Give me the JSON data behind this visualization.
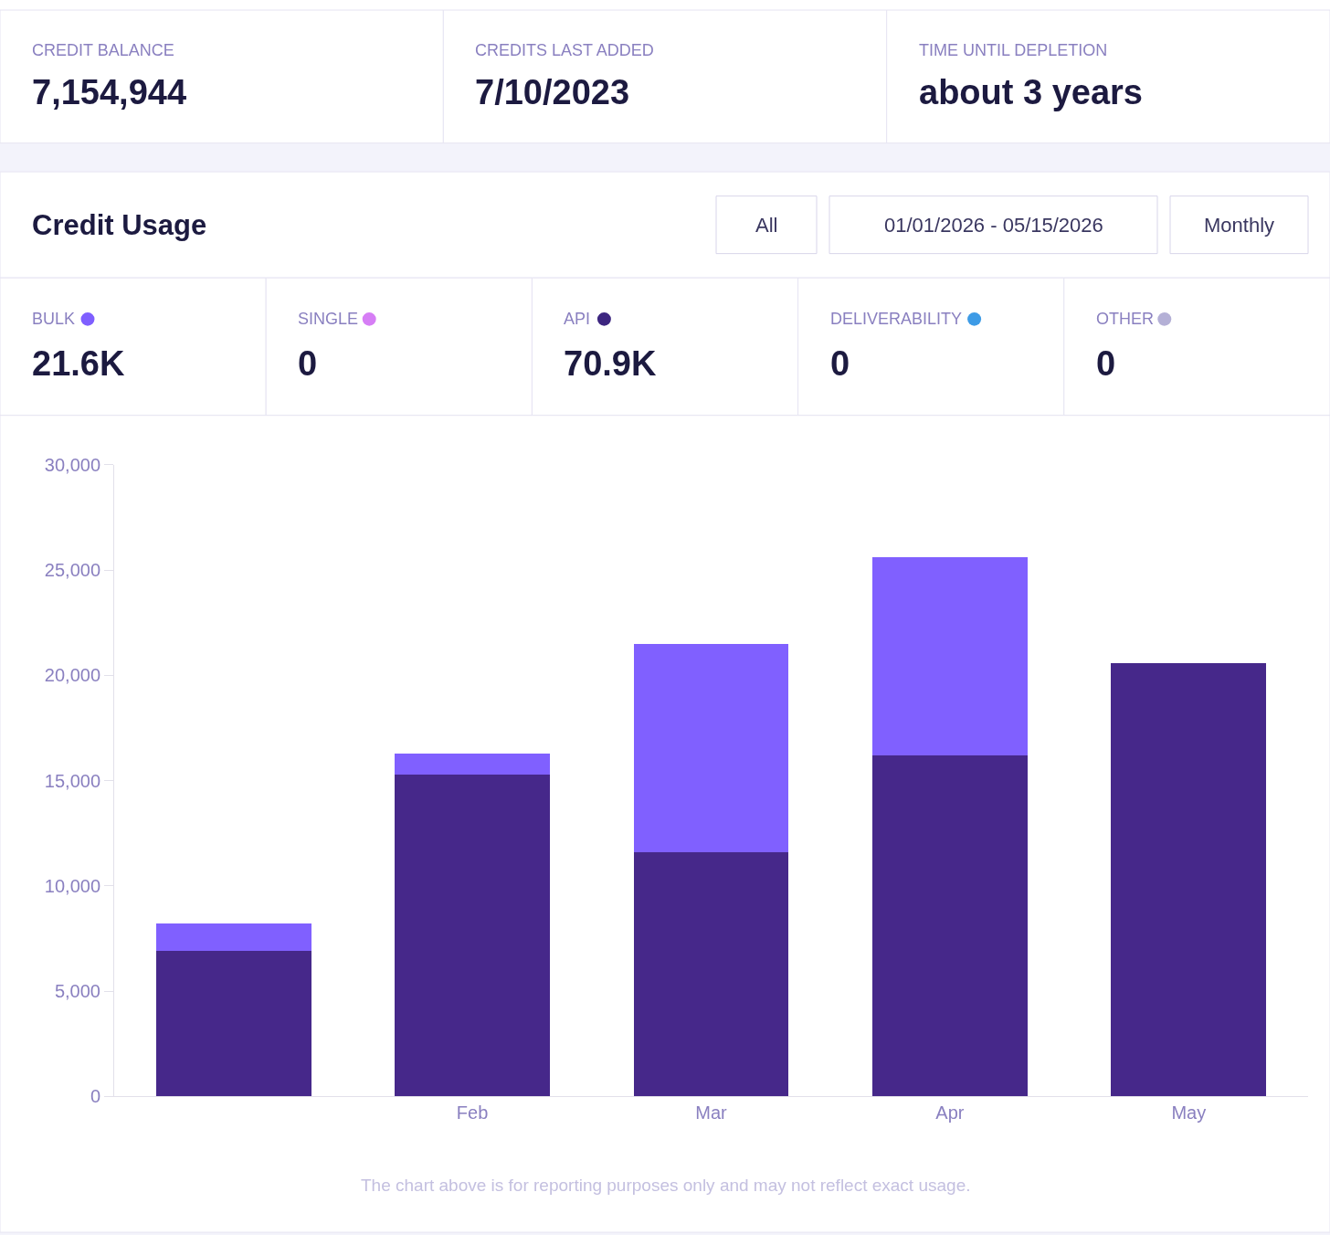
{
  "chart_data": [
    {
      "type": "other",
      "categories": [
        "CREDIT BALANCE",
        "CREDITS LAST ADDED",
        "TIME UNTIL DEPLETION"
      ],
      "value_labels": [
        "7,154,944",
        "7/10/2023",
        "about 3 years"
      ]
    },
    {
      "type": "other",
      "title": "Credit Usage",
      "annotations": [
        "All",
        "01/01/2026 - 05/15/2026",
        "Monthly"
      ]
    },
    {
      "type": "other",
      "categories": [
        "BULK",
        "SINGLE",
        "API",
        "DELIVERABILITY",
        "OTHER"
      ],
      "value_labels": [
        "21.6K",
        "0",
        "70.9K",
        "0",
        "0"
      ],
      "colors": [
        "#7f5fff",
        "#d67ef5",
        "#3d2680",
        "#3d9be6",
        "#b4b0d6"
      ]
    },
    {
      "type": "bar",
      "stacked": true,
      "categories": [
        null,
        "Feb",
        "Mar",
        "Apr",
        "May"
      ],
      "series": [
        {
          "color": "#46288a",
          "values": [
            6900,
            15300,
            11600,
            16200,
            20600
          ]
        },
        {
          "color": "#8060ff",
          "values": [
            1300,
            1000,
            9900,
            9400,
            0
          ]
        }
      ],
      "ylim": [
        0,
        30000
      ],
      "yticks": [
        0,
        {
          "value": 5000,
          "label": "5,000"
        },
        {
          "value": 10000,
          "label": "10,000"
        },
        {
          "value": 15000,
          "label": "15,000"
        },
        {
          "value": 20000,
          "label": "20,000"
        },
        {
          "value": 25000,
          "label": "25,000"
        },
        {
          "value": 30000,
          "label": "30,000"
        }
      ],
      "grid": false,
      "annotations": [
        "The chart above is for reporting purposes only and may not reflect exact usage."
      ]
    }
  ]
}
